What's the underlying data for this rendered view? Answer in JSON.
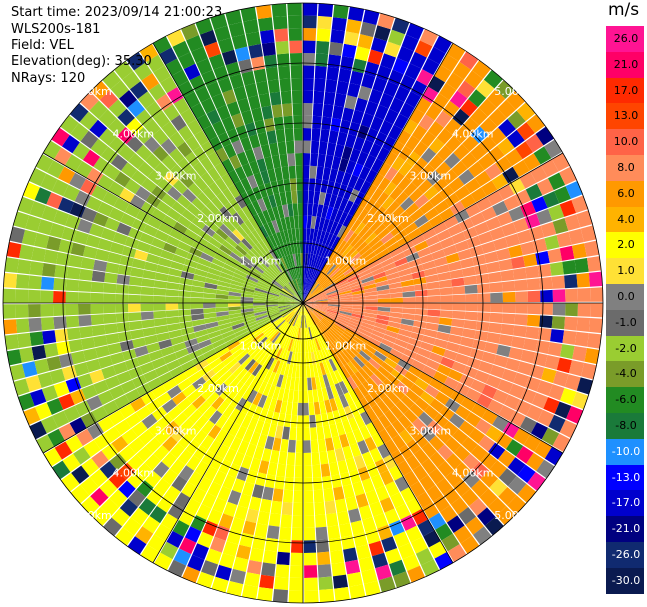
{
  "header": {
    "start_time": "Start time: 2023/09/14 21:00:23",
    "instrument": "WLS200s-181",
    "field": "Field: VEL",
    "elevation": "Elevation(deg): 35.30",
    "nrays": "NRays: 120"
  },
  "colorbar": {
    "unit": "m/s",
    "labels": [
      "26.0",
      "21.0",
      "17.0",
      "13.0",
      "10.0",
      "8.0",
      "6.0",
      "4.0",
      "2.0",
      "1.0",
      "0.0",
      "-1.0",
      "-2.0",
      "-4.0",
      "-6.0",
      "-8.0",
      "-10.0",
      "-13.0",
      "-17.0",
      "-21.0",
      "-26.0",
      "-30.0"
    ],
    "colors": [
      "#ff1493",
      "#ff0066",
      "#ff2a00",
      "#ff4500",
      "#ff6347",
      "#ff8c5a",
      "#ff9900",
      "#ffb300",
      "#ffff00",
      "#ffe135",
      "#808080",
      "#6b6b6b",
      "#9acd32",
      "#7a9c29",
      "#228b22",
      "#1a7a3a",
      "#1e90ff",
      "#0000ff",
      "#0000cd",
      "#000080",
      "#102a70",
      "#0a1a50"
    ]
  },
  "chart_data": {
    "type": "polar_ppi",
    "field": "VEL",
    "units": "m/s",
    "range_rings_km": [
      1.0,
      2.0,
      3.0,
      4.0,
      5.0
    ],
    "ring_labels": [
      "1.00km",
      "2.00km",
      "3.00km",
      "4.00km",
      "5.00km"
    ],
    "max_range_km": 5.0,
    "n_rays": 120,
    "elevation_deg": 35.3,
    "sector_velocity_ms": [
      {
        "from_deg": 0,
        "to_deg": 30,
        "velocity": -17.0
      },
      {
        "from_deg": 30,
        "to_deg": 60,
        "velocity": 6.0
      },
      {
        "from_deg": 60,
        "to_deg": 120,
        "velocity": 8.0
      },
      {
        "from_deg": 120,
        "to_deg": 150,
        "velocity": 6.0
      },
      {
        "from_deg": 150,
        "to_deg": 210,
        "velocity": 2.0
      },
      {
        "from_deg": 210,
        "to_deg": 240,
        "velocity": 2.0
      },
      {
        "from_deg": 240,
        "to_deg": 270,
        "velocity": -2.0
      },
      {
        "from_deg": 270,
        "to_deg": 330,
        "velocity": -2.0
      },
      {
        "from_deg": 330,
        "to_deg": 360,
        "velocity": -6.0
      }
    ]
  }
}
